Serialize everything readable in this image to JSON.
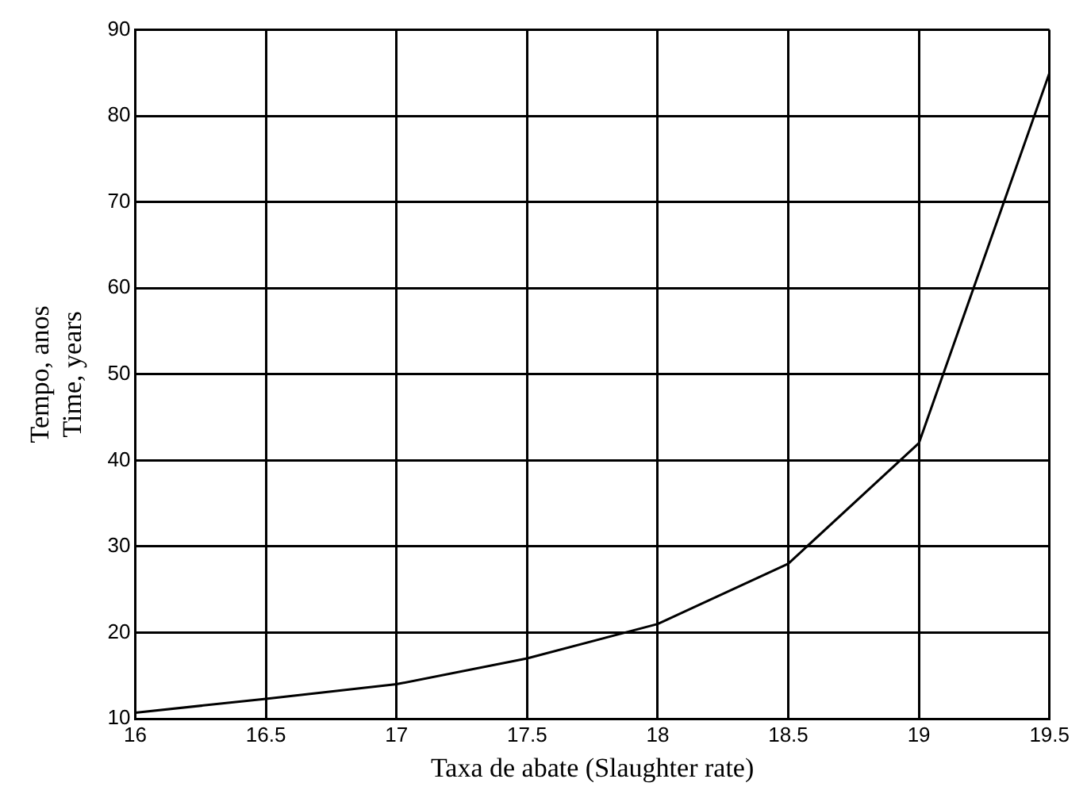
{
  "chart_data": {
    "type": "line",
    "xlabel": "Taxa de abate (Slaughter rate)",
    "ylabel": [
      "Tempo, anos",
      "Time, years"
    ],
    "x": [
      16,
      16.5,
      17,
      17.5,
      18,
      18.5,
      19,
      19.5
    ],
    "series": [
      {
        "color": "#000000",
        "values": [
          10.7,
          12.3,
          14,
          17,
          21,
          28,
          42,
          85
        ]
      }
    ],
    "xlim": [
      16,
      19.5
    ],
    "xticks": [
      16,
      16.5,
      17,
      17.5,
      18,
      18.5,
      19,
      19.5
    ],
    "ylim": [
      10,
      90
    ],
    "yticks": [
      10,
      20,
      30,
      40,
      50,
      60,
      70,
      80,
      90
    ],
    "grid": true,
    "legend": false,
    "marker": "none",
    "line_style": "solid"
  }
}
